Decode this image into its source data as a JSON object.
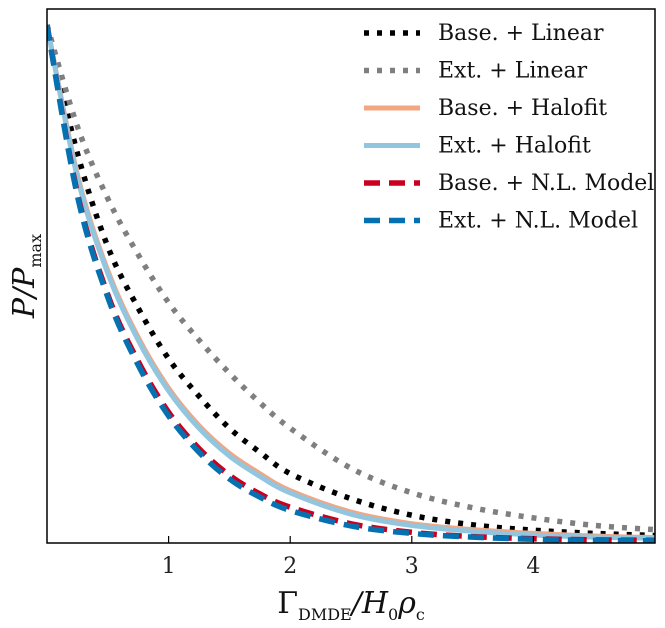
{
  "chart_data": {
    "type": "line",
    "xlabel": "Γ_DMDE / H₀ρ_c",
    "ylabel": "P / P_max",
    "xlim": [
      0,
      5
    ],
    "ylim": [
      0,
      1
    ],
    "x_ticks": [
      1,
      2,
      3,
      4
    ],
    "y_ticks": [],
    "grid": false,
    "legend_position": "top-right",
    "series": [
      {
        "name": "Base. + Linear",
        "color": "#000000",
        "style": "dotted",
        "x": [
          0,
          0.25,
          0.5,
          0.75,
          1,
          1.25,
          1.5,
          1.75,
          2,
          2.5,
          3,
          3.5,
          4,
          4.5,
          5
        ],
        "y": [
          0.97,
          0.73,
          0.555,
          0.44,
          0.345,
          0.275,
          0.215,
          0.17,
          0.13,
          0.083,
          0.052,
          0.034,
          0.024,
          0.018,
          0.014
        ]
      },
      {
        "name": "Ext. + Linear",
        "color": "#7f7f7f",
        "style": "dotted",
        "x": [
          0,
          0.25,
          0.5,
          0.75,
          1,
          1.25,
          1.5,
          1.75,
          2,
          2.5,
          3,
          3.5,
          4,
          4.5,
          5
        ],
        "y": [
          0.97,
          0.78,
          0.645,
          0.54,
          0.45,
          0.38,
          0.318,
          0.263,
          0.215,
          0.14,
          0.094,
          0.066,
          0.047,
          0.033,
          0.025
        ]
      },
      {
        "name": "Base. + Halofit",
        "color": "#f4a582",
        "style": "solid",
        "x": [
          0,
          0.25,
          0.5,
          0.75,
          1,
          1.25,
          1.5,
          1.75,
          2,
          2.5,
          3,
          3.5,
          4,
          4.5,
          5
        ],
        "y": [
          0.97,
          0.69,
          0.51,
          0.385,
          0.29,
          0.22,
          0.168,
          0.13,
          0.098,
          0.058,
          0.036,
          0.025,
          0.018,
          0.013,
          0.01
        ]
      },
      {
        "name": "Ext. + Halofit",
        "color": "#92c5de",
        "style": "solid",
        "x": [
          0,
          0.25,
          0.5,
          0.75,
          1,
          1.25,
          1.5,
          1.75,
          2,
          2.5,
          3,
          3.5,
          4,
          4.5,
          5
        ],
        "y": [
          0.97,
          0.685,
          0.505,
          0.38,
          0.285,
          0.215,
          0.163,
          0.125,
          0.094,
          0.054,
          0.033,
          0.022,
          0.015,
          0.011,
          0.009
        ]
      },
      {
        "name": "Base. + N.L. Model",
        "color": "#ca0020",
        "style": "dashed",
        "x": [
          0,
          0.25,
          0.5,
          0.75,
          1,
          1.25,
          1.5,
          1.75,
          2,
          2.5,
          3,
          3.5,
          4,
          4.5,
          5
        ],
        "y": [
          0.97,
          0.655,
          0.465,
          0.34,
          0.245,
          0.177,
          0.127,
          0.092,
          0.067,
          0.036,
          0.02,
          0.012,
          0.008,
          0.006,
          0.005
        ]
      },
      {
        "name": "Ext. + N.L. Model",
        "color": "#0571b0",
        "style": "dashed",
        "x": [
          0,
          0.25,
          0.5,
          0.75,
          1,
          1.25,
          1.5,
          1.75,
          2,
          2.5,
          3,
          3.5,
          4,
          4.5,
          5
        ],
        "y": [
          0.97,
          0.65,
          0.46,
          0.333,
          0.238,
          0.17,
          0.12,
          0.086,
          0.061,
          0.032,
          0.018,
          0.011,
          0.007,
          0.005,
          0.004
        ]
      }
    ]
  }
}
